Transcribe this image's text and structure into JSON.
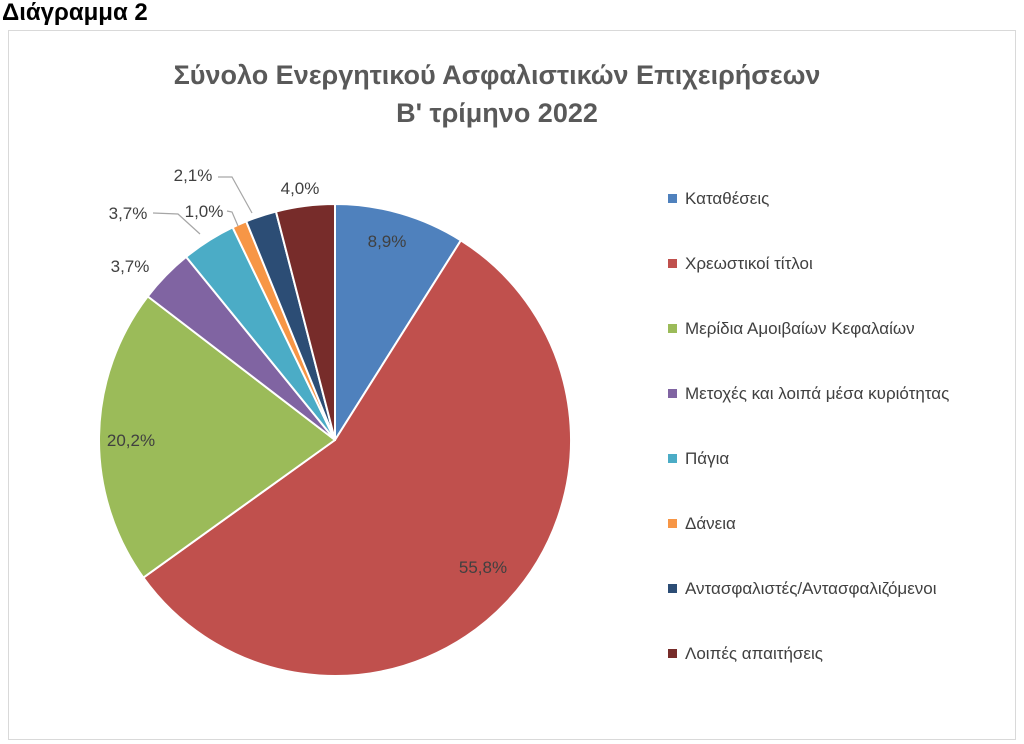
{
  "figure_label": "Διάγραμμα 2",
  "chart_data": {
    "type": "pie",
    "title": "Σύνολο Ενεργητικού Ασφαλιστικών Επιχειρήσεων",
    "subtitle": "Β' τρίμηνο 2022",
    "categories": [
      "Καταθέσεις",
      "Χρεωστικοί τίτλοι",
      "Μερίδια Αμοιβαίων Κεφαλαίων",
      "Μετοχές και λοιπά μέσα κυριότητας",
      "Πάγια",
      "Δάνεια",
      "Αντασφαλιστές/Αντασφαλιζόμενοι",
      "Λοιπές απαιτήσεις"
    ],
    "values": [
      8.9,
      55.8,
      20.2,
      3.7,
      3.7,
      1.0,
      2.1,
      4.0
    ],
    "data_labels": [
      "8,9%",
      "55,8%",
      "20,2%",
      "3,7%",
      "3,7%",
      "1,0%",
      "2,1%",
      "4,0%"
    ],
    "colors": [
      "#4F81BD",
      "#C0504D",
      "#9BBB59",
      "#8064A2",
      "#4BACC6",
      "#F79646",
      "#2C4D75",
      "#772C2A"
    ],
    "legend_position": "right"
  }
}
